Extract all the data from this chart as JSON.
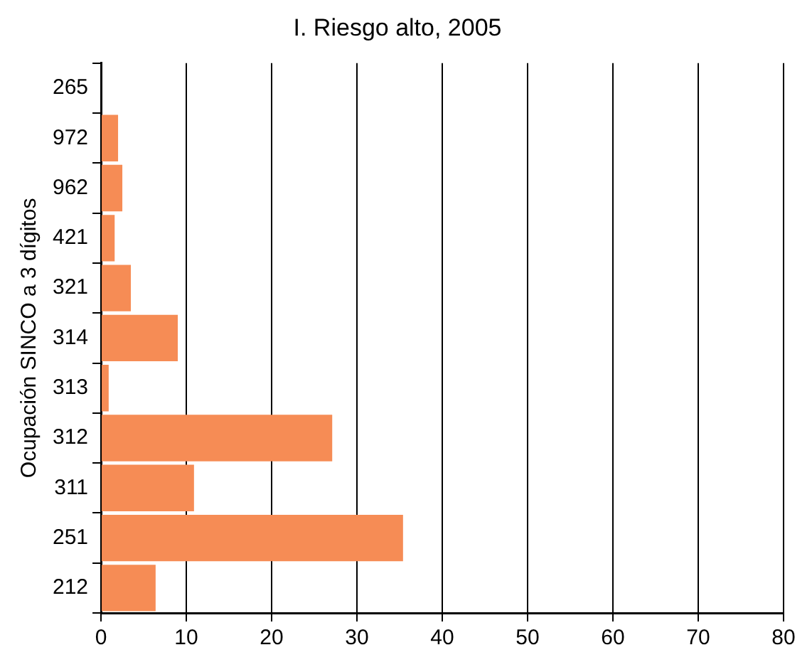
{
  "chart_data": {
    "type": "bar",
    "orientation": "horizontal",
    "title": "I. Riesgo alto, 2005",
    "ylabel": "Ocupación SINCO a 3 dígitos",
    "categories": [
      "265",
      "972",
      "962",
      "421",
      "321",
      "314",
      "313",
      "312",
      "311",
      "251",
      "212"
    ],
    "values": [
      0,
      2.0,
      2.5,
      1.6,
      3.5,
      9.0,
      0.9,
      27.1,
      10.9,
      35.4,
      6.4
    ],
    "color": "#f68c55",
    "xlim": [
      0,
      80
    ],
    "xticks": [
      0,
      10,
      20,
      30,
      40,
      50,
      60,
      70,
      80
    ],
    "grid": "x",
    "legend": false
  }
}
